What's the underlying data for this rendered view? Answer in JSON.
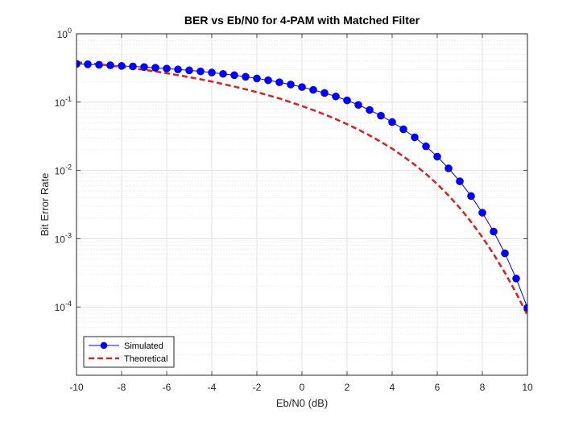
{
  "chart_data": {
    "type": "line",
    "title": "BER vs Eb/N0 for 4-PAM with Matched Filter",
    "xlabel": "Eb/N0 (dB)",
    "ylabel": "Bit Error Rate",
    "xlim": [
      -10,
      10
    ],
    "ylim": [
      1e-05,
      1
    ],
    "yscale": "log",
    "grid": true,
    "minor_grid": true,
    "legend_location": "bottom-left",
    "x_ticks": [
      {
        "value": -10,
        "label": "-10"
      },
      {
        "value": -8,
        "label": "-8"
      },
      {
        "value": -6,
        "label": "-6"
      },
      {
        "value": -4,
        "label": "-4"
      },
      {
        "value": -2,
        "label": "-2"
      },
      {
        "value": 0,
        "label": "0"
      },
      {
        "value": 2,
        "label": "2"
      },
      {
        "value": 4,
        "label": "4"
      },
      {
        "value": 6,
        "label": "6"
      },
      {
        "value": 8,
        "label": "8"
      },
      {
        "value": 10,
        "label": "10"
      }
    ],
    "y_ticks": [
      {
        "value": 1,
        "base": "10",
        "exp": "0"
      },
      {
        "value": 0.1,
        "base": "10",
        "exp": "-1"
      },
      {
        "value": 0.01,
        "base": "10",
        "exp": "-2"
      },
      {
        "value": 0.001,
        "base": "10",
        "exp": "-3"
      },
      {
        "value": 0.0001,
        "base": "10",
        "exp": "-4"
      }
    ],
    "x": [
      -10,
      -9.5,
      -9,
      -8.5,
      -8,
      -7.5,
      -7,
      -6.5,
      -6,
      -5.5,
      -5,
      -4.5,
      -4,
      -3.5,
      -3,
      -2.5,
      -2,
      -1.5,
      -1,
      -0.5,
      0,
      0.5,
      1,
      1.5,
      2,
      2.5,
      3,
      3.5,
      4,
      4.5,
      5,
      5.5,
      6,
      6.5,
      7,
      7.5,
      8,
      8.5,
      9,
      9.5,
      10
    ],
    "series": [
      {
        "name": "Simulated",
        "color": "#0000ff",
        "style": "solid",
        "marker": "circle",
        "values": [
          0.363,
          0.358,
          0.352,
          0.346,
          0.339,
          0.333,
          0.326,
          0.318,
          0.31,
          0.301,
          0.292,
          0.282,
          0.271,
          0.259,
          0.248,
          0.235,
          0.222,
          0.209,
          0.195,
          0.181,
          0.166,
          0.151,
          0.136,
          0.121,
          0.106,
          0.091,
          0.0766,
          0.0632,
          0.051,
          0.04,
          0.0305,
          0.0225,
          0.0159,
          0.0107,
          0.00692,
          0.00421,
          0.0024,
          0.00127,
          0.00061,
          0.000261,
          9.75e-05
        ]
      },
      {
        "name": "Theoretical",
        "color": "#d62728",
        "style": "dashed",
        "values": [
          0.385,
          0.372,
          0.358,
          0.343,
          0.328,
          0.313,
          0.297,
          0.281,
          0.265,
          0.248,
          0.232,
          0.216,
          0.2,
          0.184,
          0.169,
          0.154,
          0.14,
          0.126,
          0.113,
          0.0997,
          0.0876,
          0.0764,
          0.066,
          0.0564,
          0.0476,
          0.0396,
          0.0325,
          0.0262,
          0.0208,
          0.016,
          0.0121,
          0.00889,
          0.0063,
          0.0043,
          0.00282,
          0.00176,
          0.00105,
          0.000593,
          0.000317,
          0.00016,
          7.57e-05
        ]
      }
    ]
  }
}
